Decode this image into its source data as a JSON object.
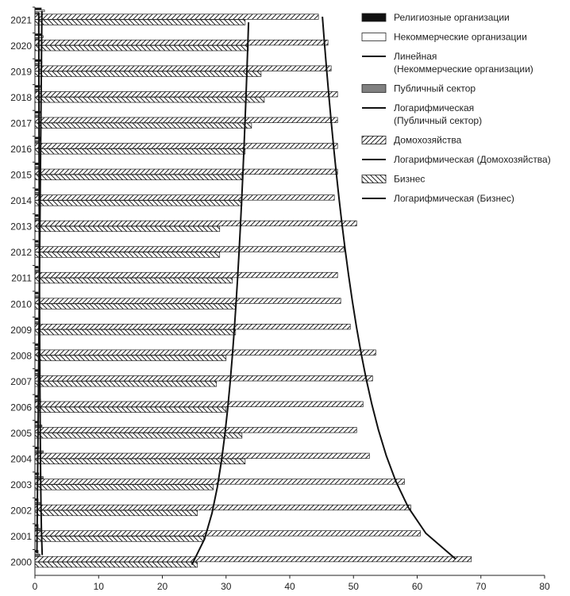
{
  "chart_data": {
    "type": "bar",
    "orientation": "horizontal",
    "categories": [
      "2000",
      "2001",
      "2002",
      "2003",
      "2004",
      "2005",
      "2006",
      "2007",
      "2008",
      "2009",
      "2010",
      "2011",
      "2012",
      "2013",
      "2014",
      "2015",
      "2016",
      "2017",
      "2018",
      "2019",
      "2020",
      "2021"
    ],
    "xlim": [
      0,
      80
    ],
    "xticks": [
      0,
      10,
      20,
      30,
      40,
      50,
      60,
      70,
      80
    ],
    "grid": false,
    "legend_position": "right",
    "series": [
      {
        "name": "Религиозные организации",
        "color": "#111111",
        "fill": "solid",
        "values": [
          0.5,
          0.5,
          0.5,
          0.6,
          0.6,
          0.6,
          0.5,
          0.5,
          0.5,
          0.5,
          0.5,
          0.5,
          0.5,
          0.5,
          0.5,
          0.6,
          0.8,
          0.8,
          0.8,
          0.9,
          1.0,
          1.0
        ]
      },
      {
        "name": "Некоммерческие организации",
        "color": "#ffffff",
        "fill": "none",
        "values": [
          0.5,
          0.5,
          0.5,
          0.5,
          0.5,
          0.5,
          0.5,
          0.5,
          0.5,
          0.6,
          0.6,
          0.6,
          0.6,
          0.6,
          0.7,
          0.7,
          0.8,
          0.9,
          1.0,
          1.1,
          1.3,
          1.5
        ]
      },
      {
        "name": "Публичный сектор",
        "color": "#808080",
        "fill": "solid",
        "values": [
          0.8,
          0.8,
          1.0,
          1.3,
          1.3,
          1.1,
          0.9,
          0.8,
          0.8,
          0.6,
          0.6,
          0.6,
          0.6,
          0.6,
          0.6,
          0.6,
          0.6,
          0.6,
          0.6,
          0.6,
          0.6,
          0.6
        ]
      },
      {
        "name": "Домохозяйства",
        "color": "#333333",
        "fill": "hatch-forward",
        "values": [
          68.5,
          60.5,
          59.0,
          58.0,
          52.5,
          50.5,
          51.5,
          53.0,
          53.5,
          49.5,
          48.0,
          47.5,
          48.5,
          50.5,
          47.0,
          47.5,
          47.5,
          47.5,
          47.5,
          46.5,
          46.0,
          44.5
        ]
      },
      {
        "name": "Бизнес",
        "color": "#333333",
        "fill": "hatch-back",
        "values": [
          25.5,
          26.5,
          25.5,
          28.0,
          33.0,
          32.5,
          30.0,
          28.5,
          30.0,
          31.5,
          31.5,
          31.0,
          29.0,
          29.0,
          32.5,
          32.5,
          33.0,
          34.0,
          36.0,
          35.5,
          33.5,
          33.0
        ]
      }
    ],
    "trendlines": [
      {
        "name": "Линейная (Некоммерческие организации)",
        "color": "#111111",
        "type": "linear",
        "of": "Некоммерческие организации"
      },
      {
        "name": "Логарифмическая (Публичный сектор)",
        "color": "#111111",
        "type": "logarithmic",
        "of": "Публичный сектор"
      },
      {
        "name": "Логарифмическая (Домохозяйства)",
        "color": "#111111",
        "type": "logarithmic",
        "of": "Домохозяйства"
      },
      {
        "name": "Логарифмическая (Бизнес)",
        "color": "#111111",
        "type": "logarithmic",
        "of": "Бизнес"
      }
    ]
  },
  "legend": [
    {
      "label": "Религиозные организации",
      "swatch": "solid-dark"
    },
    {
      "label": "Некоммерческие организации",
      "swatch": "open"
    },
    {
      "label": "Линейная\n(Некоммерческие организации)",
      "swatch": "line"
    },
    {
      "label": "Публичный сектор",
      "swatch": "solid-gray"
    },
    {
      "label": "Логарифмическая\n(Публичный сектор)",
      "swatch": "line"
    },
    {
      "label": "Домохозяйства",
      "swatch": "hatch-forward"
    },
    {
      "label": "Логарифмическая (Домохозяйства)",
      "swatch": "line"
    },
    {
      "label": "Бизнес",
      "swatch": "hatch-back"
    },
    {
      "label": "Логарифмическая (Бизнес)",
      "swatch": "line"
    }
  ]
}
